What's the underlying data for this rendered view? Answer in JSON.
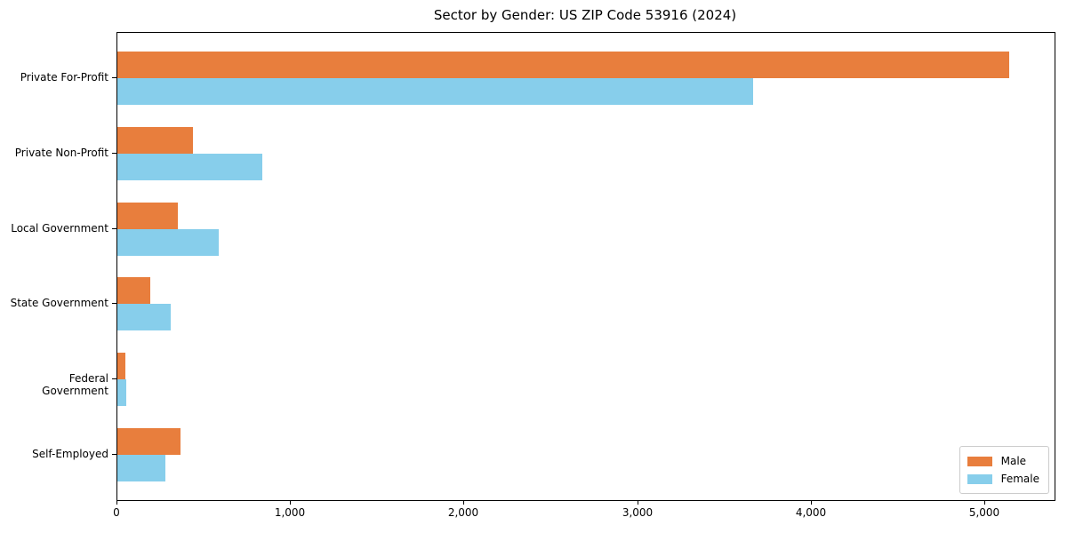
{
  "chart_data": {
    "type": "bar",
    "orientation": "horizontal",
    "title": "Sector by Gender: US ZIP Code 53916 (2024)",
    "categories": [
      "Private For-Profit",
      "Private Non-Profit",
      "Local Government",
      "State Government",
      "Federal Government",
      "Self-Employed"
    ],
    "series": [
      {
        "name": "Male",
        "color": "#e87e3d",
        "values": [
          5140,
          435,
          348,
          191,
          44,
          365
        ]
      },
      {
        "name": "Female",
        "color": "#87ceeb",
        "values": [
          3661,
          835,
          582,
          309,
          50,
          277
        ]
      }
    ],
    "xlim": [
      0,
      5400
    ],
    "x_ticks": [
      0,
      1000,
      2000,
      3000,
      4000,
      5000
    ],
    "x_tick_labels": [
      "0",
      "1,000",
      "2,000",
      "3,000",
      "4,000",
      "5,000"
    ],
    "ylabel": "",
    "xlabel": "",
    "grid": false,
    "legend_position": "lower right",
    "axis_color": "#000000",
    "background_color": "#ffffff"
  }
}
